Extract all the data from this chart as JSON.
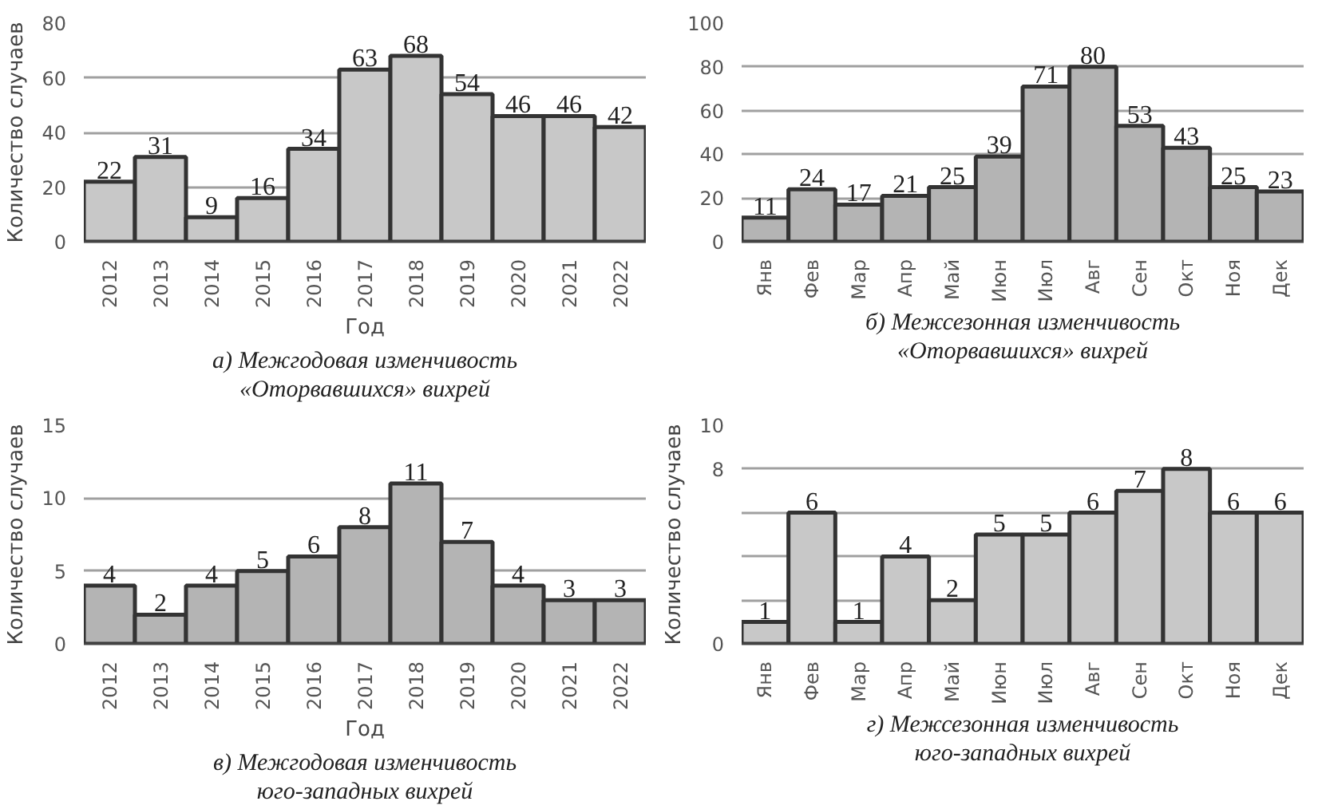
{
  "chart_data": [
    {
      "type": "bar",
      "title": "а) Межгодовая изменчивость «Оторвавшихся» вихрей",
      "xlabel": "Год",
      "ylabel": "Количество случаев",
      "categories": [
        "2012",
        "2013",
        "2014",
        "2015",
        "2016",
        "2017",
        "2018",
        "2019",
        "2020",
        "2021",
        "2022"
      ],
      "values": [
        22,
        31,
        9,
        16,
        34,
        63,
        68,
        54,
        46,
        46,
        42
      ],
      "color": "#c8c8c8",
      "ylim": [
        0,
        80
      ],
      "yticks": [
        0,
        20,
        40,
        60,
        80
      ],
      "grid": "y",
      "data_labels": true
    },
    {
      "type": "bar",
      "title": "б) Межсезонная изменчивость «Оторвавшихся» вихрей",
      "categories": [
        "Янв",
        "Фев",
        "Мар",
        "Апр",
        "Май",
        "Июн",
        "Июл",
        "Авг",
        "Сен",
        "Окт",
        "Ноя",
        "Дек"
      ],
      "values": [
        11,
        24,
        17,
        21,
        25,
        39,
        71,
        80,
        53,
        43,
        25,
        23
      ],
      "color": "#b4b4b4",
      "ylim": [
        0,
        100
      ],
      "yticks": [
        0,
        20,
        40,
        60,
        80,
        100
      ],
      "grid": "y",
      "data_labels": true
    },
    {
      "type": "bar",
      "title": "в) Межгодовая изменчивость юго-западных вихрей",
      "xlabel": "Год",
      "ylabel": "Количество случаев",
      "categories": [
        "2012",
        "2013",
        "2014",
        "2015",
        "2016",
        "2017",
        "2018",
        "2019",
        "2020",
        "2021",
        "2022"
      ],
      "values": [
        4,
        2,
        4,
        5,
        6,
        8,
        11,
        7,
        4,
        3,
        3
      ],
      "color": "#b4b4b4",
      "ylim": [
        0,
        15
      ],
      "yticks": [
        0,
        5,
        10,
        15
      ],
      "grid": "y",
      "data_labels": true
    },
    {
      "type": "bar",
      "title": "г) Межсезонная изменчивость юго-западных вихрей",
      "ylabel": "Количество случаев",
      "categories": [
        "Янв",
        "Фев",
        "Мар",
        "Апр",
        "Май",
        "Июн",
        "Июл",
        "Авг",
        "Сен",
        "Окт",
        "Ноя",
        "Дек"
      ],
      "values": [
        1,
        6,
        1,
        4,
        2,
        5,
        5,
        6,
        7,
        8,
        6,
        6
      ],
      "color": "#c8c8c8",
      "ylim": [
        0,
        10
      ],
      "yticks": [
        0,
        {
          "value": 2,
          "label": null
        },
        {
          "value": 4,
          "label": null
        },
        {
          "value": 6,
          "label": null
        },
        8,
        10
      ],
      "grid": "y",
      "data_labels": true
    }
  ]
}
